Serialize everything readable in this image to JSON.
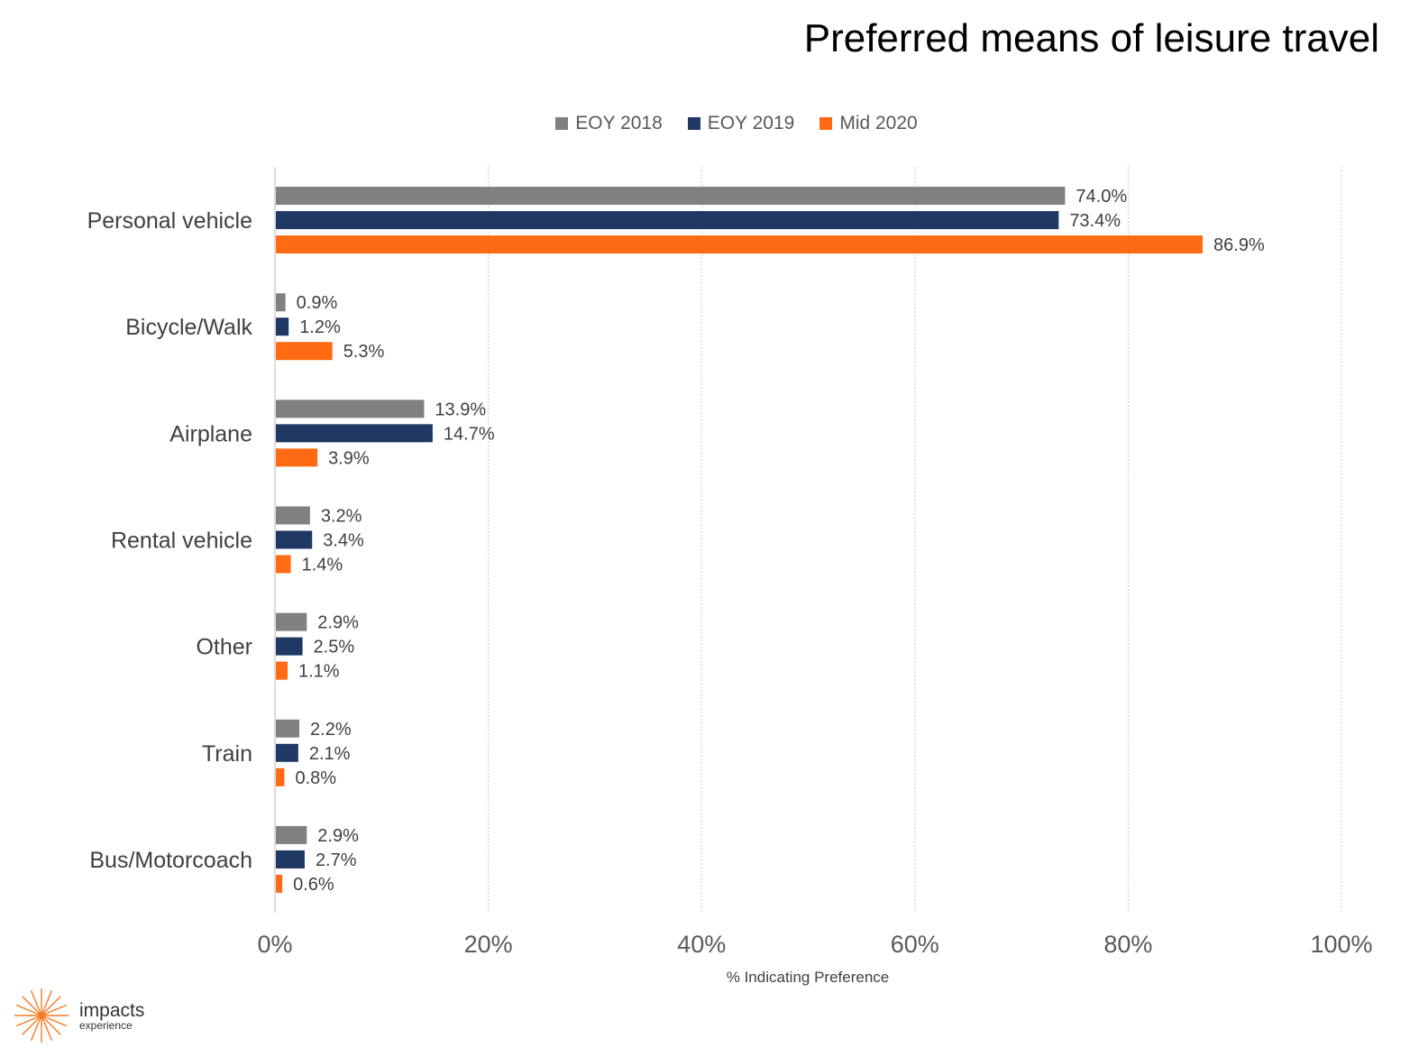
{
  "title": "Preferred means of leisure travel",
  "colors": {
    "EOY 2018": "#808080",
    "EOY 2019": "#1F3864",
    "Mid 2020": "#FF6A13",
    "grid": "#C8C8C8",
    "axis": "#D0D0D0"
  },
  "logo": {
    "name": "impacts",
    "sub": "experience",
    "icon": "starburst-icon",
    "color": "#F47A20"
  },
  "chart_data": {
    "type": "bar",
    "orientation": "horizontal",
    "categories": [
      "Personal vehicle",
      "Bicycle/Walk",
      "Airplane",
      "Rental vehicle",
      "Other",
      "Train",
      "Bus/Motorcoach"
    ],
    "series": [
      {
        "name": "EOY 2018",
        "values": [
          74.0,
          0.9,
          13.9,
          3.2,
          2.9,
          2.2,
          2.9
        ],
        "labels": [
          "74.0%",
          "0.9%",
          "13.9%",
          "3.2%",
          "2.9%",
          "2.2%",
          "2.9%"
        ]
      },
      {
        "name": "EOY 2019",
        "values": [
          73.4,
          1.2,
          14.7,
          3.4,
          2.5,
          2.1,
          2.7
        ],
        "labels": [
          "73.4%",
          "1.2%",
          "14.7%",
          "3.4%",
          "2.5%",
          "2.1%",
          "2.7%"
        ]
      },
      {
        "name": "Mid 2020",
        "values": [
          86.9,
          5.3,
          3.9,
          1.4,
          1.1,
          0.8,
          0.6
        ],
        "labels": [
          "86.9%",
          "5.3%",
          "3.9%",
          "1.4%",
          "1.1%",
          "0.8%",
          "0.6%"
        ]
      }
    ],
    "xlabel": "% Indicating Preference",
    "ylabel": "",
    "xlim": [
      0,
      100
    ],
    "xticks": [
      0,
      20,
      40,
      60,
      80,
      100
    ],
    "xtick_labels": [
      "0%",
      "20%",
      "40%",
      "60%",
      "80%",
      "100%"
    ],
    "grid": "vertical dotted",
    "legend": "top-center"
  }
}
